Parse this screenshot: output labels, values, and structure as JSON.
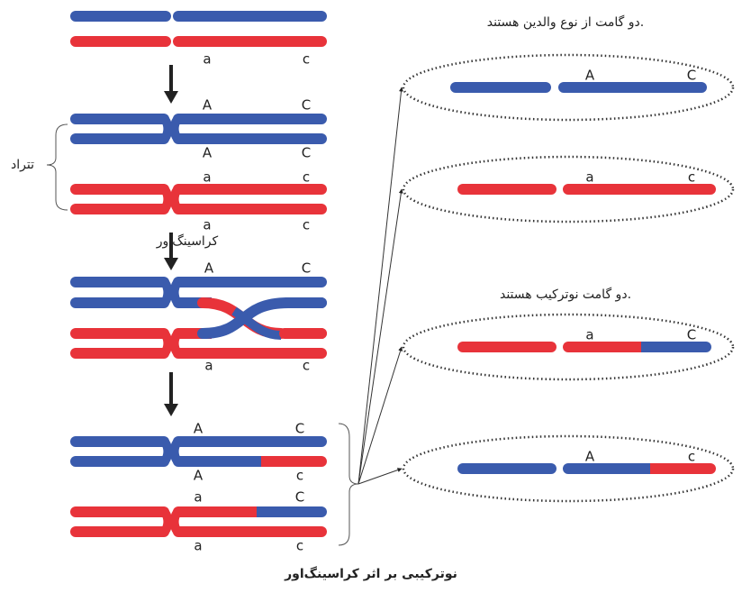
{
  "labels": {
    "tetrad": "تتراد",
    "crossing_over": "کراسینگ‌اور",
    "parental": "دو گامت از نوع والدین هستند.",
    "recombinant": "دو گامت نوترکیب هستند.",
    "caption": "نوترکیبی بر اثر کراسینگ‌اور"
  },
  "stages": [
    {
      "labels": [
        "a",
        "c"
      ]
    },
    {
      "labels": [
        "A",
        "C",
        "A",
        "C",
        "a",
        "c",
        "a",
        "c"
      ]
    },
    {
      "labels": [
        "A",
        "C",
        "a",
        "c"
      ]
    },
    {
      "labels": [
        "A",
        "C",
        "A",
        "c",
        "a",
        "C",
        "a",
        "c"
      ]
    }
  ],
  "gametes": [
    {
      "labels": [
        "A",
        "C"
      ]
    },
    {
      "labels": [
        "a",
        "c"
      ]
    },
    {
      "labels": [
        "a",
        "C"
      ]
    },
    {
      "labels": [
        "A",
        "c"
      ]
    }
  ]
}
